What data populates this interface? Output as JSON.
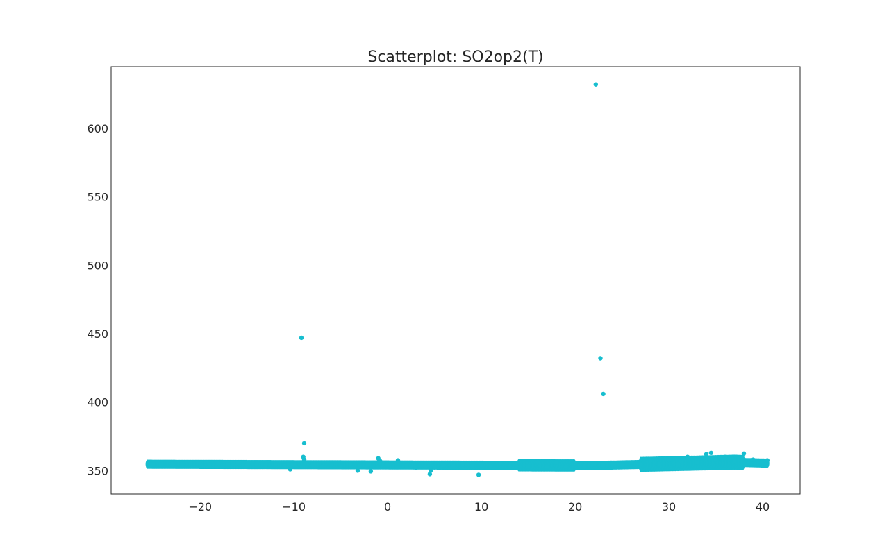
{
  "chart_data": {
    "type": "scatter",
    "title": "Scatterplot: SO2op2(T)",
    "xlabel": "",
    "ylabel": "",
    "xlim": [
      -29.5,
      44.0
    ],
    "ylim": [
      333,
      645
    ],
    "grid": false,
    "legend": "none",
    "point_color": "#17becf",
    "x_ticks": [
      -20,
      -10,
      0,
      10,
      20,
      30,
      40
    ],
    "x_tick_labels": [
      "−20",
      "−10",
      "0",
      "10",
      "20",
      "30",
      "40"
    ],
    "y_ticks": [
      350,
      400,
      450,
      500,
      550,
      600
    ],
    "y_tick_labels": [
      "350",
      "400",
      "450",
      "500",
      "550",
      "600"
    ],
    "points": [
      [
        22.2,
        632
      ],
      [
        -9.2,
        447
      ],
      [
        22.7,
        432
      ],
      [
        23.0,
        406
      ],
      [
        -8.9,
        370
      ],
      [
        -9.0,
        360
      ],
      [
        -8.9,
        358
      ],
      [
        -1.0,
        359
      ],
      [
        -0.8,
        357
      ],
      [
        1.1,
        357.5
      ],
      [
        9.7,
        347
      ],
      [
        4.5,
        347.5
      ],
      [
        4.6,
        350
      ],
      [
        -3.2,
        350
      ],
      [
        -1.8,
        349.5
      ],
      [
        -10.4,
        351
      ],
      [
        -25.5,
        355
      ],
      [
        -25.0,
        354.5
      ],
      [
        -24.2,
        354.2
      ],
      [
        -23.0,
        355
      ],
      [
        -22.0,
        354
      ],
      [
        -21.0,
        355.5
      ],
      [
        -20.0,
        355
      ],
      [
        -19.0,
        354.2
      ],
      [
        -18.0,
        355.3
      ],
      [
        -17.0,
        354.5
      ],
      [
        -16.0,
        355.8
      ],
      [
        -15.0,
        354
      ],
      [
        -14.0,
        354.9
      ],
      [
        -13.0,
        353.8
      ],
      [
        -12.0,
        354.7
      ],
      [
        -11.0,
        353.5
      ],
      [
        -10.0,
        354.4
      ],
      [
        -9.0,
        353
      ],
      [
        -8.0,
        354.2
      ],
      [
        -7.0,
        352.8
      ],
      [
        -6.0,
        354.6
      ],
      [
        -5.0,
        353
      ],
      [
        -4.0,
        355
      ],
      [
        -3.0,
        353.3
      ],
      [
        -2.0,
        354.5
      ],
      [
        -1.0,
        352.8
      ],
      [
        0.0,
        354
      ],
      [
        1.0,
        352.5
      ],
      [
        2.0,
        353.6
      ],
      [
        3.0,
        352.2
      ],
      [
        4.0,
        353
      ],
      [
        5.0,
        352.4
      ],
      [
        6.0,
        354
      ],
      [
        7.0,
        353
      ],
      [
        8.0,
        355.2
      ],
      [
        9.0,
        353.5
      ],
      [
        10.0,
        354.8
      ],
      [
        11.0,
        353.2
      ],
      [
        12.0,
        355.5
      ],
      [
        13.0,
        353
      ],
      [
        14.0,
        356
      ],
      [
        15.0,
        353.2
      ],
      [
        16.0,
        356.4
      ],
      [
        17.0,
        352.8
      ],
      [
        18.0,
        356
      ],
      [
        19.0,
        353
      ],
      [
        20.0,
        355.4
      ],
      [
        21.0,
        353.5
      ],
      [
        22.0,
        354.5
      ],
      [
        23.0,
        353.8
      ],
      [
        24.0,
        355
      ],
      [
        25.0,
        354.2
      ],
      [
        26.0,
        356
      ],
      [
        27.0,
        354.5
      ],
      [
        28.0,
        357
      ],
      [
        29.0,
        354.8
      ],
      [
        30.0,
        358
      ],
      [
        31.0,
        355
      ],
      [
        32.0,
        360
      ],
      [
        33.0,
        356
      ],
      [
        34.0,
        362
      ],
      [
        34.5,
        363
      ],
      [
        35.0,
        358
      ],
      [
        36.0,
        360
      ],
      [
        37.0,
        357
      ],
      [
        38.0,
        362.5
      ],
      [
        39.0,
        358
      ],
      [
        40.0,
        356
      ],
      [
        40.5,
        357.5
      ]
    ]
  }
}
